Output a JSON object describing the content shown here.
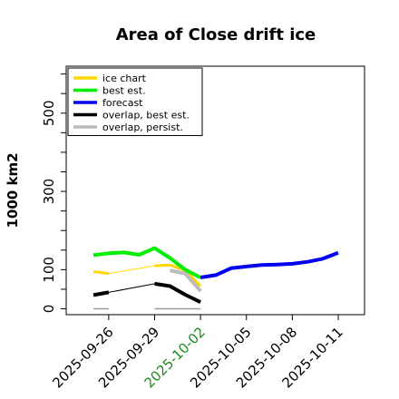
{
  "chart_data": {
    "type": "line",
    "title": "Area of Close drift ice",
    "ylabel": "1000 km2",
    "xlabel": "",
    "ylim": [
      -15,
      620
    ],
    "xlim": [
      "2025-09-25",
      "2025-10-11"
    ],
    "y_ticks": [
      "0",
      "100",
      "300",
      "500"
    ],
    "y_tick_values": [
      0,
      100,
      300,
      500
    ],
    "y_minor_ticks": [
      50,
      150,
      200,
      250,
      350,
      400,
      450,
      550,
      600
    ],
    "x_ticks": [
      "2025-09-26",
      "2025-09-29",
      "2025-10-02",
      "2025-10-05",
      "2025-10-08",
      "2025-10-11"
    ],
    "x_tick_colors": [
      "#000000",
      "#000000",
      "#1e8a1e",
      "#000000",
      "#000000",
      "#000000"
    ],
    "grid": false,
    "legend_position": "top-left",
    "series": [
      {
        "name": "ice chart",
        "color": "#ffd700",
        "width": 3,
        "segments": [
          [
            {
              "x": "2025-09-25",
              "y": 95
            },
            {
              "x": "2025-09-26",
              "y": 90
            }
          ],
          [
            {
              "x": "2025-09-29",
              "y": 110
            },
            {
              "x": "2025-09-30",
              "y": 112
            },
            {
              "x": "2025-10-01",
              "y": 98
            },
            {
              "x": "2025-10-02",
              "y": 58
            }
          ]
        ]
      },
      {
        "name": "ice chart link",
        "color": "#ffd700",
        "width": 1,
        "segments": [
          [
            {
              "x": "2025-09-26",
              "y": 90
            },
            {
              "x": "2025-09-29",
              "y": 110
            }
          ]
        ]
      },
      {
        "name": "best est.",
        "color": "#00ee00",
        "width": 4,
        "segments": [
          [
            {
              "x": "2025-09-25",
              "y": 137
            },
            {
              "x": "2025-09-26",
              "y": 142
            },
            {
              "x": "2025-09-27",
              "y": 144
            },
            {
              "x": "2025-09-28",
              "y": 138
            },
            {
              "x": "2025-09-29",
              "y": 155
            },
            {
              "x": "2025-09-30",
              "y": 130
            },
            {
              "x": "2025-10-01",
              "y": 100
            },
            {
              "x": "2025-10-02",
              "y": 80
            }
          ]
        ]
      },
      {
        "name": "forecast",
        "color": "#0000ee",
        "width": 4,
        "segments": [
          [
            {
              "x": "2025-10-02",
              "y": 80
            },
            {
              "x": "2025-10-03",
              "y": 86
            },
            {
              "x": "2025-10-04",
              "y": 104
            },
            {
              "x": "2025-10-05",
              "y": 108
            },
            {
              "x": "2025-10-06",
              "y": 112
            },
            {
              "x": "2025-10-07",
              "y": 113
            },
            {
              "x": "2025-10-08",
              "y": 115
            },
            {
              "x": "2025-10-09",
              "y": 120
            },
            {
              "x": "2025-10-10",
              "y": 128
            },
            {
              "x": "2025-10-11",
              "y": 143
            }
          ]
        ]
      },
      {
        "name": "overlap, best est.",
        "color": "#000000",
        "width": 4,
        "segments": [
          [
            {
              "x": "2025-09-25",
              "y": 35
            },
            {
              "x": "2025-09-26",
              "y": 42
            }
          ],
          [
            {
              "x": "2025-09-29",
              "y": 64
            },
            {
              "x": "2025-09-30",
              "y": 58
            },
            {
              "x": "2025-10-01",
              "y": 36
            },
            {
              "x": "2025-10-02",
              "y": 17
            }
          ]
        ]
      },
      {
        "name": "overlap link",
        "color": "#000000",
        "width": 1,
        "segments": [
          [
            {
              "x": "2025-09-26",
              "y": 42
            },
            {
              "x": "2025-09-29",
              "y": 64
            }
          ]
        ]
      },
      {
        "name": "overlap, persist.",
        "color": "#bbbbbb",
        "width": 4,
        "segments": [
          [
            {
              "x": "2025-09-30",
              "y": 98
            },
            {
              "x": "2025-10-01",
              "y": 90
            },
            {
              "x": "2025-10-02",
              "y": 45
            }
          ]
        ]
      },
      {
        "name": "persist baseline",
        "color": "#999999",
        "width": 1.5,
        "segments": [
          [
            {
              "x": "2025-09-25",
              "y": 0
            },
            {
              "x": "2025-09-26",
              "y": 0
            }
          ],
          [
            {
              "x": "2025-09-29",
              "y": 0
            },
            {
              "x": "2025-10-02",
              "y": 0
            }
          ]
        ]
      }
    ],
    "legend": [
      {
        "label": "ice chart",
        "color": "#ffd700"
      },
      {
        "label": "best est.",
        "color": "#00ee00"
      },
      {
        "label": "forecast",
        "color": "#0000ee"
      },
      {
        "label": "overlap, best est.",
        "color": "#000000"
      },
      {
        "label": "overlap, persist.",
        "color": "#bbbbbb"
      }
    ]
  }
}
